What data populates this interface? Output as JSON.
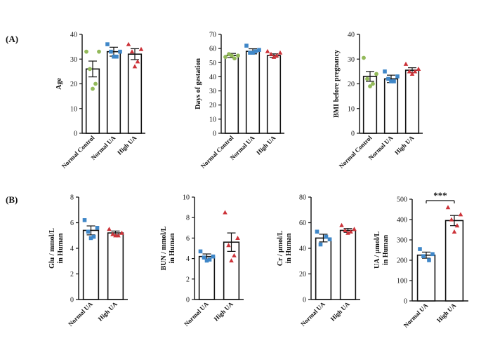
{
  "panel_labels": {
    "a": "(A)",
    "b": "(B)"
  },
  "colors": {
    "normal_control": "#93b95a",
    "normal_ua": "#3f87c8",
    "high_ua": "#cc3339"
  },
  "chart_data": [
    {
      "type": "bar",
      "panel": "A",
      "ylabel": "Age",
      "ylim": [
        0,
        40
      ],
      "yticks": [
        0,
        10,
        20,
        30,
        40
      ],
      "categories": [
        "Normal Control",
        "Normal UA",
        "High UA"
      ],
      "values": [
        26,
        33,
        32
      ],
      "errors": [
        3.2,
        1.8,
        2.2
      ],
      "points": [
        [
          33,
          33,
          26,
          20,
          18
        ],
        [
          36,
          33,
          33,
          31,
          31
        ],
        [
          36,
          34,
          33,
          29,
          27
        ]
      ]
    },
    {
      "type": "bar",
      "panel": "A",
      "ylabel": "Days of gestation",
      "ylim": [
        0,
        70
      ],
      "yticks": [
        0,
        10,
        20,
        30,
        40,
        50,
        60,
        70
      ],
      "categories": [
        "Normal Control",
        "Normal UA",
        "High UA"
      ],
      "values": [
        55,
        58,
        55
      ],
      "errors": [
        1.5,
        1.8,
        1.2
      ],
      "points": [
        [
          54,
          55,
          56,
          53,
          55
        ],
        [
          62,
          59,
          57,
          58,
          57
        ],
        [
          58,
          57,
          56,
          55,
          54
        ]
      ]
    },
    {
      "type": "bar",
      "panel": "A",
      "ylabel": "BMI before pregnancy",
      "ylim": [
        0,
        40
      ],
      "yticks": [
        0,
        10,
        20,
        30,
        40
      ],
      "categories": [
        "Normal Control",
        "Normal UA",
        "High UA"
      ],
      "values": [
        23,
        22,
        25.5
      ],
      "errors": [
        2,
        1.5,
        1
      ],
      "points": [
        [
          30.5,
          24,
          22,
          20,
          19
        ],
        [
          25,
          23,
          22,
          21,
          21
        ],
        [
          28,
          26,
          25,
          25,
          24
        ]
      ]
    },
    {
      "type": "bar",
      "panel": "B",
      "ylabel": "Glu / mmol/L in Human",
      "ylim": [
        0,
        8
      ],
      "yticks": [
        0,
        2,
        4,
        6,
        8
      ],
      "categories": [
        "Normal UA",
        "High UA"
      ],
      "values": [
        5.4,
        5.2
      ],
      "errors": [
        0.35,
        0.15
      ],
      "points": [
        [
          6.2,
          5.6,
          5.3,
          4.9,
          4.8
        ],
        [
          5.5,
          5.2,
          5.1,
          5.0,
          5.0
        ]
      ]
    },
    {
      "type": "bar",
      "panel": "B",
      "ylabel": "BUN / mmol/L in Human",
      "ylim": [
        0,
        10
      ],
      "yticks": [
        0,
        2,
        4,
        6,
        8,
        10
      ],
      "categories": [
        "Normal UA",
        "High UA"
      ],
      "values": [
        4.2,
        5.6
      ],
      "errors": [
        0.25,
        0.9
      ],
      "points": [
        [
          4.7,
          4.2,
          4.1,
          3.9,
          3.8
        ],
        [
          8.5,
          6.0,
          5.3,
          4.3,
          3.8
        ]
      ]
    },
    {
      "type": "bar",
      "panel": "B",
      "ylabel": "Cr / µmol/L in Human",
      "ylim": [
        0,
        80
      ],
      "yticks": [
        0,
        20,
        40,
        60,
        80
      ],
      "categories": [
        "Normal UA",
        "High UA"
      ],
      "values": [
        48,
        54
      ],
      "errors": [
        3,
        1.5
      ],
      "points": [
        [
          53,
          47,
          43,
          49
        ],
        [
          58,
          55,
          54,
          53,
          52
        ]
      ]
    },
    {
      "type": "bar",
      "panel": "B",
      "ylabel": "UA / µmol/L in Human",
      "ylim": [
        0,
        500
      ],
      "yticks": [
        0,
        100,
        200,
        300,
        400,
        500
      ],
      "categories": [
        "Normal UA",
        "High UA"
      ],
      "values": [
        225,
        395
      ],
      "errors": [
        15,
        25
      ],
      "points": [
        [
          255,
          230,
          220,
          200
        ],
        [
          460,
          425,
          400,
          370,
          340
        ]
      ],
      "significance": "***"
    }
  ]
}
